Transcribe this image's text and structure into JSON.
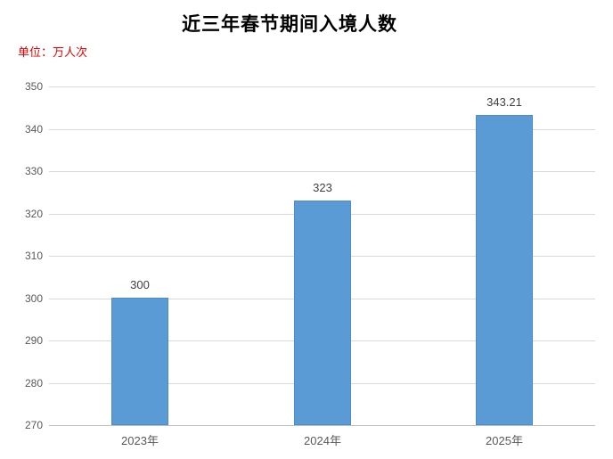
{
  "title": "近三年春节期间入境人数",
  "unit_label": "单位：万人次",
  "colors": {
    "bar_fill": "#5b9bd5",
    "bar_edge": "#4e8cc8",
    "gridline": "#d9d9d9",
    "axis_line": "#bfbfbf",
    "axis_text": "#595959",
    "value_text": "#404040",
    "unit_text": "#e00000",
    "title_text": "#000000"
  },
  "chart_data": {
    "type": "bar",
    "title": "近三年春节期间入境人数",
    "ylabel": "单位：万人次",
    "categories": [
      "2023年",
      "2024年",
      "2025年"
    ],
    "values": [
      300,
      323,
      343.21
    ],
    "value_labels": [
      "300",
      "323",
      "343.21"
    ],
    "ylim": [
      270,
      350
    ],
    "ytick_step": 10,
    "yticks": [
      270,
      280,
      290,
      300,
      310,
      320,
      330,
      340,
      350
    ],
    "grid": true,
    "legend": false,
    "bar_color": "#5b9bd5"
  }
}
